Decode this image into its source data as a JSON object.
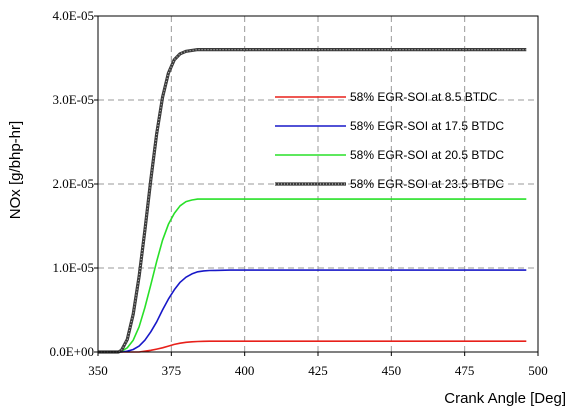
{
  "chart_data": {
    "type": "line",
    "xlabel": "Crank Angle [Deg]",
    "ylabel": "NOx [g/bhp-hr]",
    "xlim": [
      350,
      500
    ],
    "ylim": [
      0,
      4e-05
    ],
    "x_ticks": [
      "350",
      "375",
      "400",
      "425",
      "450",
      "475",
      "500"
    ],
    "y_ticks": [
      "0.0E+00",
      "1.0E-05",
      "2.0E-05",
      "3.0E-05",
      "4.0E-05"
    ],
    "grid": true,
    "legend_position": "right",
    "x": [
      350,
      355,
      357,
      358,
      360,
      362,
      364,
      366,
      368,
      370,
      372,
      374,
      376,
      378,
      380,
      382,
      384,
      386,
      388,
      390,
      395,
      400,
      425,
      450,
      475,
      496
    ],
    "series": [
      {
        "name": "58% EGR-SOI at 8.5 BTDC",
        "color": "#e8201a",
        "values": [
          0,
          0,
          0,
          0,
          0,
          0,
          0,
          1e-07,
          2e-07,
          3.5e-07,
          5e-07,
          7e-07,
          9e-07,
          1.05e-06,
          1.15e-06,
          1.22e-06,
          1.25e-06,
          1.27e-06,
          1.28e-06,
          1.28e-06,
          1.28e-06,
          1.28e-06,
          1.28e-06,
          1.28e-06,
          1.28e-06,
          1.28e-06
        ]
      },
      {
        "name": "58% EGR-SOI at 17.5 BTDC",
        "color": "#1818c8",
        "values": [
          0,
          0,
          0,
          0,
          1e-07,
          3e-07,
          7e-07,
          1.4e-06,
          2.4e-06,
          3.6e-06,
          5e-06,
          6.3e-06,
          7.4e-06,
          8.3e-06,
          8.9e-06,
          9.3e-06,
          9.55e-06,
          9.65e-06,
          9.7e-06,
          9.72e-06,
          9.75e-06,
          9.75e-06,
          9.75e-06,
          9.75e-06,
          9.75e-06,
          9.75e-06
        ]
      },
      {
        "name": "58% EGR-SOI at 20.5 BTDC",
        "color": "#28e028",
        "values": [
          0,
          0,
          0,
          1e-07,
          5e-07,
          1.4e-06,
          3e-06,
          5.3e-06,
          8e-06,
          1.08e-05,
          1.33e-05,
          1.52e-05,
          1.65e-05,
          1.74e-05,
          1.79e-05,
          1.81e-05,
          1.82e-05,
          1.82e-05,
          1.82e-05,
          1.82e-05,
          1.82e-05,
          1.82e-05,
          1.82e-05,
          1.82e-05,
          1.82e-05,
          1.82e-05
        ]
      },
      {
        "name": "58% EGR-SOI at 23.5 BTDC",
        "color": "#3a3a3a",
        "values": [
          0,
          0,
          0,
          2e-07,
          1.5e-06,
          4.5e-06,
          9e-06,
          1.45e-05,
          2.05e-05,
          2.6e-05,
          3.03e-05,
          3.32e-05,
          3.48e-05,
          3.55e-05,
          3.58e-05,
          3.59e-05,
          3.6e-05,
          3.6e-05,
          3.6e-05,
          3.6e-05,
          3.6e-05,
          3.6e-05,
          3.6e-05,
          3.6e-05,
          3.6e-05,
          3.6e-05
        ]
      }
    ]
  }
}
